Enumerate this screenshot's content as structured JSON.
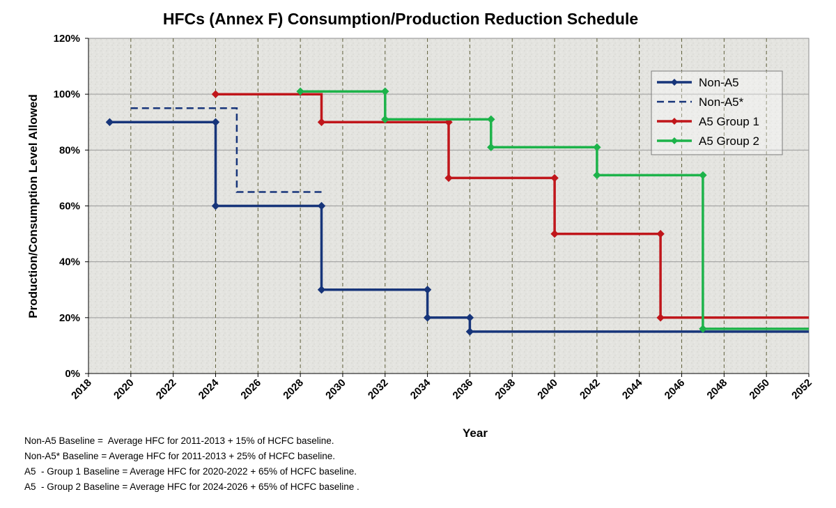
{
  "chart_data": {
    "type": "line",
    "title": "HFCs (Annex F) Consumption/Production Reduction Schedule",
    "xlabel": "Year",
    "ylabel": "Production/Consumption Level Allowed",
    "xlim": [
      2018,
      2052
    ],
    "ylim": [
      0,
      120
    ],
    "x_ticks": [
      2018,
      2020,
      2022,
      2024,
      2026,
      2028,
      2030,
      2032,
      2034,
      2036,
      2038,
      2040,
      2042,
      2044,
      2046,
      2048,
      2050,
      2052
    ],
    "y_ticks": [
      0,
      20,
      40,
      60,
      80,
      100,
      120
    ],
    "y_tick_labels": [
      "0%",
      "20%",
      "40%",
      "60%",
      "80%",
      "100%",
      "120%"
    ],
    "legend_position": "top-right",
    "series": [
      {
        "name": "Non-A5",
        "color": "#17357a",
        "style": "solid",
        "markers": true,
        "points": [
          [
            2019,
            90
          ],
          [
            2024,
            90
          ],
          [
            2024,
            60
          ],
          [
            2029,
            60
          ],
          [
            2029,
            30
          ],
          [
            2034,
            30
          ],
          [
            2034,
            20
          ],
          [
            2036,
            20
          ],
          [
            2036,
            15
          ],
          [
            2052,
            15
          ]
        ],
        "marker_points": [
          [
            2019,
            90
          ],
          [
            2024,
            90
          ],
          [
            2024,
            60
          ],
          [
            2029,
            60
          ],
          [
            2029,
            30
          ],
          [
            2034,
            30
          ],
          [
            2034,
            20
          ],
          [
            2036,
            20
          ],
          [
            2036,
            15
          ]
        ]
      },
      {
        "name": "Non-A5*",
        "color": "#17357a",
        "style": "dashed",
        "markers": false,
        "points": [
          [
            2020,
            95
          ],
          [
            2025,
            95
          ],
          [
            2025,
            65
          ],
          [
            2029,
            65
          ]
        ],
        "marker_points": []
      },
      {
        "name": "A5 Group 1",
        "color": "#c0161b",
        "style": "solid",
        "markers": true,
        "points": [
          [
            2024,
            100
          ],
          [
            2029,
            100
          ],
          [
            2029,
            90
          ],
          [
            2035,
            90
          ],
          [
            2035,
            70
          ],
          [
            2040,
            70
          ],
          [
            2040,
            50
          ],
          [
            2045,
            50
          ],
          [
            2045,
            20
          ],
          [
            2052,
            20
          ]
        ],
        "marker_points": [
          [
            2024,
            100
          ],
          [
            2029,
            90
          ],
          [
            2035,
            90
          ],
          [
            2035,
            70
          ],
          [
            2040,
            70
          ],
          [
            2040,
            50
          ],
          [
            2045,
            50
          ],
          [
            2045,
            20
          ]
        ]
      },
      {
        "name": "A5 Group 2",
        "color": "#1db34a",
        "style": "solid",
        "markers": true,
        "points": [
          [
            2028,
            101
          ],
          [
            2032,
            101
          ],
          [
            2032,
            91
          ],
          [
            2037,
            91
          ],
          [
            2037,
            81
          ],
          [
            2042,
            81
          ],
          [
            2042,
            71
          ],
          [
            2047,
            71
          ],
          [
            2047,
            16
          ],
          [
            2052,
            16
          ]
        ],
        "marker_points": [
          [
            2028,
            101
          ],
          [
            2032,
            101
          ],
          [
            2032,
            91
          ],
          [
            2037,
            91
          ],
          [
            2037,
            81
          ],
          [
            2042,
            81
          ],
          [
            2042,
            71
          ],
          [
            2047,
            71
          ],
          [
            2047,
            16
          ]
        ]
      }
    ]
  },
  "notes": [
    "Non-A5 Baseline =  Average HFC for 2011-2013 + 15% of HCFC baseline.",
    "Non-A5* Baseline = Average HFC for 2011-2013 + 25% of HCFC baseline.",
    "A5  - Group 1 Baseline = Average HFC for 2020-2022 + 65% of HCFC baseline.",
    "A5  - Group 2 Baseline = Average HFC for 2024-2026 + 65% of HCFC baseline ."
  ]
}
